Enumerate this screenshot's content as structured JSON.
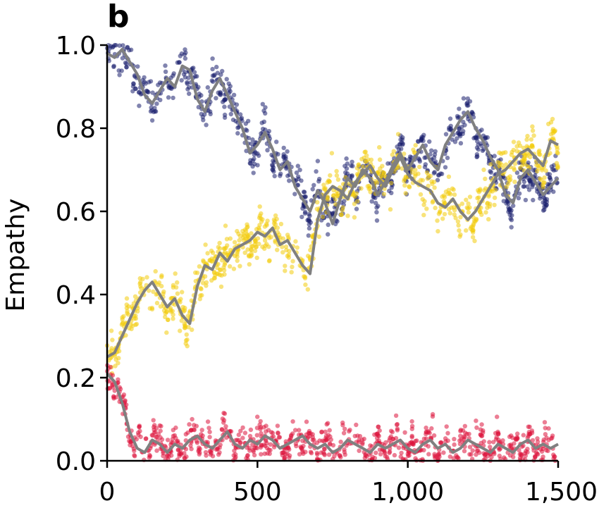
{
  "chart_data": {
    "type": "scatter",
    "panel_label": "b",
    "title": "",
    "xlabel": "",
    "ylabel": "Empathy",
    "xlim": [
      0,
      1500
    ],
    "ylim": [
      0,
      1
    ],
    "x_ticks": [
      0,
      500,
      1000,
      1500
    ],
    "x_tick_labels": [
      "0",
      "500",
      "1,000",
      "1,500"
    ],
    "y_ticks": [
      0,
      0.2,
      0.4,
      0.6,
      0.8,
      1.0
    ],
    "y_tick_labels": [
      "0.0",
      "0.2",
      "0.4",
      "0.6",
      "0.8",
      "1.0"
    ],
    "grid": false,
    "mean_line_color": "#808080",
    "series": [
      {
        "color": "#1a1f6e",
        "spread": 0.035,
        "x": [
          0,
          25,
          50,
          75,
          100,
          125,
          150,
          175,
          200,
          225,
          250,
          275,
          300,
          325,
          350,
          375,
          400,
          425,
          450,
          475,
          500,
          525,
          550,
          575,
          600,
          625,
          650,
          675,
          700,
          725,
          750,
          775,
          800,
          825,
          850,
          875,
          900,
          925,
          950,
          975,
          1000,
          1025,
          1050,
          1075,
          1100,
          1125,
          1150,
          1175,
          1200,
          1225,
          1250,
          1275,
          1300,
          1325,
          1350,
          1375,
          1400,
          1425,
          1450,
          1475,
          1500
        ],
        "mean": [
          0.98,
          0.97,
          0.99,
          0.96,
          0.93,
          0.88,
          0.86,
          0.89,
          0.92,
          0.9,
          0.95,
          0.94,
          0.87,
          0.84,
          0.89,
          0.92,
          0.88,
          0.84,
          0.8,
          0.74,
          0.76,
          0.79,
          0.75,
          0.7,
          0.72,
          0.66,
          0.63,
          0.6,
          0.65,
          0.62,
          0.57,
          0.63,
          0.68,
          0.66,
          0.7,
          0.68,
          0.64,
          0.67,
          0.71,
          0.74,
          0.7,
          0.73,
          0.76,
          0.72,
          0.7,
          0.76,
          0.79,
          0.82,
          0.84,
          0.8,
          0.77,
          0.73,
          0.7,
          0.64,
          0.62,
          0.68,
          0.7,
          0.67,
          0.64,
          0.66,
          0.68
        ]
      },
      {
        "color": "#f2cc0c",
        "spread": 0.04,
        "x": [
          0,
          25,
          50,
          75,
          100,
          125,
          150,
          175,
          200,
          225,
          250,
          275,
          300,
          325,
          350,
          375,
          400,
          425,
          450,
          475,
          500,
          525,
          550,
          575,
          600,
          625,
          650,
          675,
          700,
          725,
          750,
          775,
          800,
          825,
          850,
          875,
          900,
          925,
          950,
          975,
          1000,
          1025,
          1050,
          1075,
          1100,
          1125,
          1150,
          1175,
          1200,
          1225,
          1250,
          1275,
          1300,
          1325,
          1350,
          1375,
          1400,
          1425,
          1450,
          1475,
          1500
        ],
        "mean": [
          0.25,
          0.26,
          0.3,
          0.34,
          0.38,
          0.41,
          0.43,
          0.4,
          0.37,
          0.39,
          0.35,
          0.33,
          0.42,
          0.47,
          0.46,
          0.5,
          0.48,
          0.51,
          0.52,
          0.53,
          0.55,
          0.54,
          0.56,
          0.52,
          0.53,
          0.5,
          0.47,
          0.45,
          0.58,
          0.64,
          0.66,
          0.65,
          0.63,
          0.67,
          0.69,
          0.71,
          0.68,
          0.66,
          0.7,
          0.73,
          0.69,
          0.67,
          0.66,
          0.65,
          0.62,
          0.61,
          0.63,
          0.6,
          0.58,
          0.6,
          0.63,
          0.66,
          0.69,
          0.7,
          0.72,
          0.74,
          0.75,
          0.73,
          0.71,
          0.77,
          0.76
        ]
      },
      {
        "color": "#dc143c",
        "spread": 0.03,
        "x": [
          0,
          25,
          50,
          75,
          100,
          125,
          150,
          175,
          200,
          225,
          250,
          275,
          300,
          325,
          350,
          375,
          400,
          425,
          450,
          475,
          500,
          525,
          550,
          575,
          600,
          625,
          650,
          675,
          700,
          725,
          750,
          775,
          800,
          825,
          850,
          875,
          900,
          925,
          950,
          975,
          1000,
          1025,
          1050,
          1075,
          1100,
          1125,
          1150,
          1175,
          1200,
          1225,
          1250,
          1275,
          1300,
          1325,
          1350,
          1375,
          1400,
          1425,
          1450,
          1475,
          1500
        ],
        "mean": [
          0.21,
          0.19,
          0.14,
          0.07,
          0.03,
          0.02,
          0.05,
          0.04,
          0.02,
          0.04,
          0.03,
          0.05,
          0.06,
          0.04,
          0.03,
          0.05,
          0.07,
          0.04,
          0.03,
          0.05,
          0.04,
          0.06,
          0.05,
          0.03,
          0.04,
          0.05,
          0.06,
          0.04,
          0.03,
          0.04,
          0.02,
          0.03,
          0.05,
          0.04,
          0.03,
          0.02,
          0.04,
          0.03,
          0.04,
          0.05,
          0.03,
          0.02,
          0.04,
          0.05,
          0.03,
          0.04,
          0.02,
          0.03,
          0.05,
          0.04,
          0.03,
          0.02,
          0.04,
          0.03,
          0.02,
          0.04,
          0.05,
          0.03,
          0.04,
          0.03,
          0.04
        ]
      }
    ]
  }
}
